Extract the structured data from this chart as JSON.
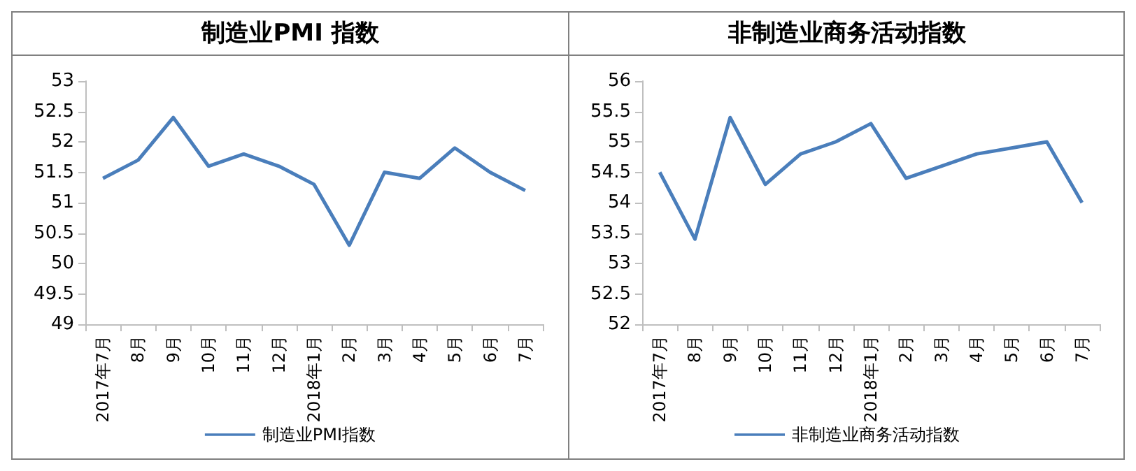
{
  "chart_data": [
    {
      "type": "line",
      "title": "制造业PMI 指数",
      "categories": [
        "2017年7月",
        "8月",
        "9月",
        "10月",
        "11月",
        "12月",
        "2018年1月",
        "2月",
        "3月",
        "4月",
        "5月",
        "6月",
        "7月"
      ],
      "series": [
        {
          "name": "制造业PMI指数",
          "color": "#4a7ebb",
          "values": [
            51.4,
            51.7,
            52.4,
            51.6,
            51.8,
            51.6,
            51.3,
            50.3,
            51.5,
            51.4,
            51.9,
            51.5,
            51.2
          ]
        }
      ],
      "ylim": [
        49,
        53
      ],
      "yticks": [
        49,
        49.5,
        50,
        50.5,
        51,
        51.5,
        52,
        52.5,
        53
      ],
      "legend": "bottom",
      "grid": false,
      "marker": "none"
    },
    {
      "type": "line",
      "title": "非制造业商务活动指数",
      "categories": [
        "2017年7月",
        "8月",
        "9月",
        "10月",
        "11月",
        "12月",
        "2018年1月",
        "2月",
        "3月",
        "4月",
        "5月",
        "6月",
        "7月"
      ],
      "series": [
        {
          "name": "非制造业商务活动指数",
          "color": "#4a7ebb",
          "values": [
            54.5,
            53.4,
            55.4,
            54.3,
            54.8,
            55.0,
            55.3,
            54.4,
            54.6,
            54.8,
            54.9,
            55.0,
            54.0
          ]
        }
      ],
      "ylim": [
        52,
        56
      ],
      "yticks": [
        52,
        52.5,
        53,
        53.5,
        54,
        54.5,
        55,
        55.5,
        56
      ],
      "legend": "bottom",
      "grid": false,
      "marker": "none"
    }
  ]
}
